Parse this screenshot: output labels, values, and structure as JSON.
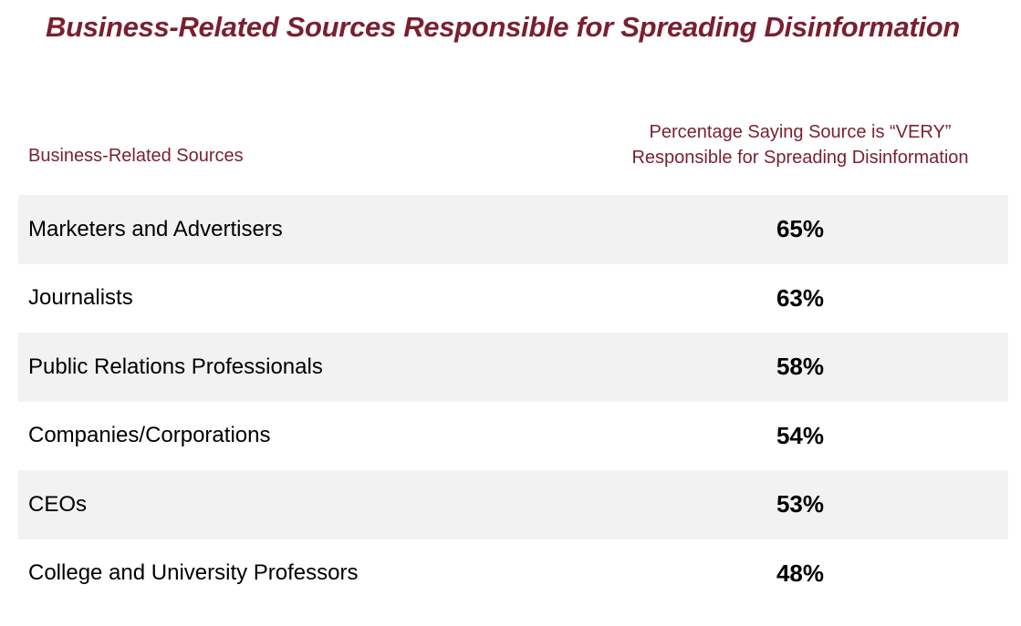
{
  "chart_data": {
    "type": "table",
    "title": "Business-Related Sources Responsible for Spreading Disinformation",
    "columns": {
      "left": "Business-Related Sources",
      "right_line1": "Percentage Saying Source is “VERY”",
      "right_line2": "Responsible for Spreading Disinformation"
    },
    "rows": [
      {
        "label": "Marketers and Advertisers",
        "value": 65,
        "display": "65%"
      },
      {
        "label": "Journalists",
        "value": 63,
        "display": "63%"
      },
      {
        "label": "Public Relations Professionals",
        "value": 58,
        "display": "58%"
      },
      {
        "label": "Companies/Corporations",
        "value": 54,
        "display": "54%"
      },
      {
        "label": "CEOs",
        "value": 53,
        "display": "53%"
      },
      {
        "label": "College and University Professors",
        "value": 48,
        "display": "48%"
      }
    ]
  },
  "colors": {
    "accent": "#7b1f30",
    "row_shade": "#f2f2f2",
    "text": "#000000"
  }
}
